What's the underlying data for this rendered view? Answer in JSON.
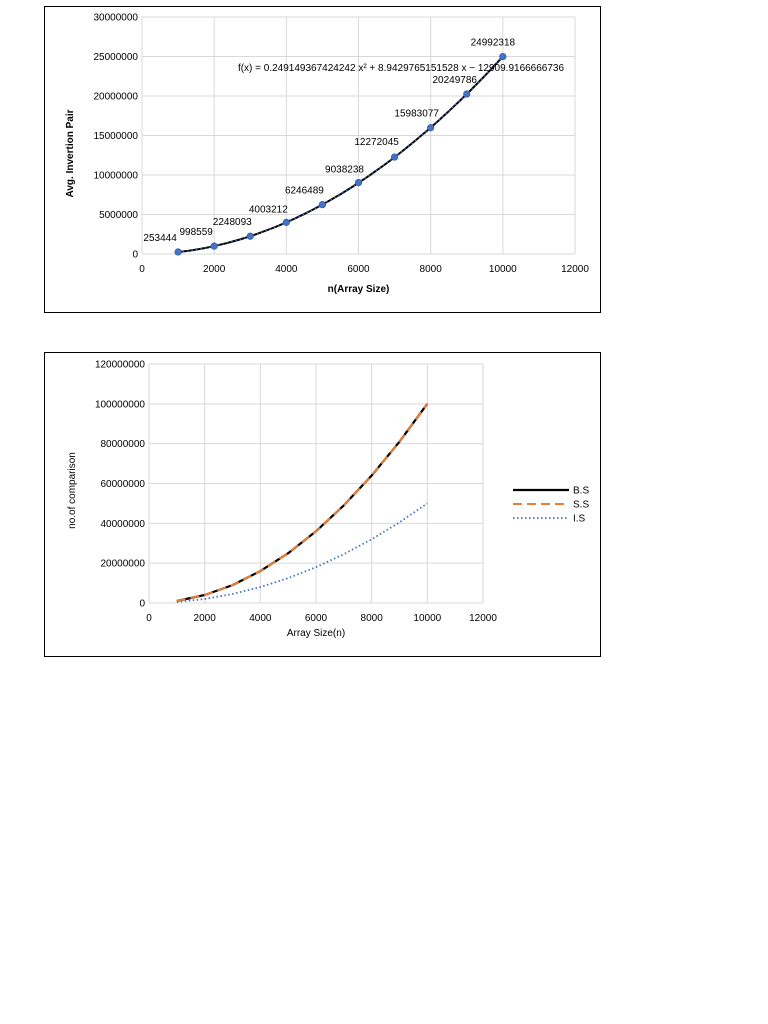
{
  "chart_data": [
    {
      "type": "scatter",
      "xlabel": "n(Array Size)",
      "ylabel": "Avg. Invertion Pair",
      "xlim": [
        0,
        12000
      ],
      "ylim": [
        0,
        30000000
      ],
      "xticks": [
        "0",
        "2000",
        "4000",
        "6000",
        "8000",
        "10000",
        "12000"
      ],
      "yticks": [
        "0",
        "5000000",
        "10000000",
        "15000000",
        "20000000",
        "25000000",
        "30000000"
      ],
      "grid": true,
      "trendline_equation": "f(x) = 0.249149367424242 x² + 8.9429765151528 x − 12909.9166666736",
      "trendline_coefficients": {
        "a": 0.249149367424242,
        "b": 8.9429765151528,
        "c": -12909.9166666736
      },
      "x": [
        1000,
        2000,
        3000,
        4000,
        5000,
        6000,
        7000,
        8000,
        9000,
        10000
      ],
      "y": [
        253444,
        998559,
        2248093,
        4003212,
        6246489,
        9038238,
        12272045,
        15983077,
        20249786,
        24992318
      ],
      "data_labels": [
        "253444",
        "998559",
        "2248093",
        "4003212",
        "6246489",
        "9038238",
        "12272045",
        "15983077",
        "20249786",
        "24992318"
      ],
      "marker_color": "#4472c4"
    },
    {
      "type": "line",
      "xlabel": "Array Size(n)",
      "ylabel": "no.of comparison",
      "xlim": [
        0,
        12000
      ],
      "ylim": [
        0,
        120000000
      ],
      "xticks": [
        "0",
        "2000",
        "4000",
        "6000",
        "8000",
        "10000",
        "12000"
      ],
      "yticks": [
        "0",
        "20000000",
        "40000000",
        "60000000",
        "80000000",
        "100000000",
        "120000000"
      ],
      "grid": true,
      "legend_position": "right",
      "x": [
        1000,
        2000,
        3000,
        4000,
        5000,
        6000,
        7000,
        8000,
        9000,
        10000
      ],
      "series": [
        {
          "name": "B.S",
          "color": "#000000",
          "style": "solid",
          "values": [
            1000000,
            4000000,
            9000000,
            16000000,
            25000000,
            36000000,
            49000000,
            64000000,
            81000000,
            100000000
          ]
        },
        {
          "name": "S.S",
          "color": "#ed7d31",
          "style": "dashed",
          "values": [
            1000000,
            4000000,
            9000000,
            16000000,
            25000000,
            36000000,
            49000000,
            64000000,
            81000000,
            100000000
          ]
        },
        {
          "name": "I.S",
          "color": "#4472c4",
          "style": "dotted",
          "values": [
            500000,
            2000000,
            4500000,
            8000000,
            12500000,
            18000000,
            24500000,
            32000000,
            40500000,
            50000000
          ]
        }
      ]
    }
  ]
}
